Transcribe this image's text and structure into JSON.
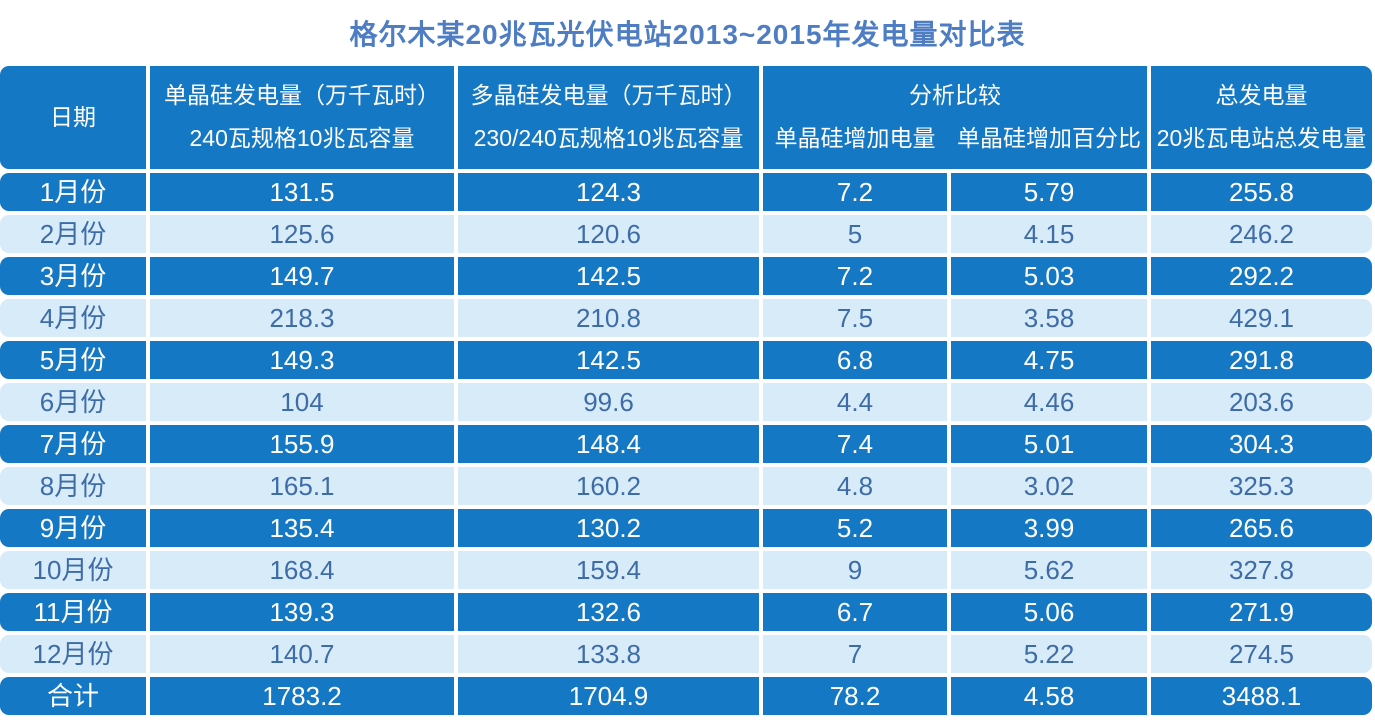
{
  "title": "格尔木某20兆瓦光伏电站2013~2015年发电量对比表",
  "colors": {
    "band_dark": "#1478c4",
    "band_light": "#d8ebf8",
    "text_on_dark": "#ffffff",
    "text_on_light": "#3d6ca9",
    "title_text": "#4e7dc4"
  },
  "header": {
    "date_label": "日期",
    "mono_line1": "单晶硅发电量（万千瓦时）",
    "mono_line2": "240瓦规格10兆瓦容量",
    "poly_line1": "多晶硅发电量（万千瓦时）",
    "poly_line2": "230/240瓦规格10兆瓦容量",
    "analysis_label": "分析比较",
    "analysis_sub1": "单晶硅增加电量",
    "analysis_sub2": "单晶硅增加百分比",
    "total_line1": "总发电量",
    "total_line2": "20兆瓦电站总发电量"
  },
  "rows": [
    {
      "month": "1月份",
      "mono": "131.5",
      "poly": "124.3",
      "increase": "7.2",
      "percent": "5.79",
      "total": "255.8"
    },
    {
      "month": "2月份",
      "mono": "125.6",
      "poly": "120.6",
      "increase": "5",
      "percent": "4.15",
      "total": "246.2"
    },
    {
      "month": "3月份",
      "mono": "149.7",
      "poly": "142.5",
      "increase": "7.2",
      "percent": "5.03",
      "total": "292.2"
    },
    {
      "month": "4月份",
      "mono": "218.3",
      "poly": "210.8",
      "increase": "7.5",
      "percent": "3.58",
      "total": "429.1"
    },
    {
      "month": "5月份",
      "mono": "149.3",
      "poly": "142.5",
      "increase": "6.8",
      "percent": "4.75",
      "total": "291.8"
    },
    {
      "month": "6月份",
      "mono": "104",
      "poly": "99.6",
      "increase": "4.4",
      "percent": "4.46",
      "total": "203.6"
    },
    {
      "month": "7月份",
      "mono": "155.9",
      "poly": "148.4",
      "increase": "7.4",
      "percent": "5.01",
      "total": "304.3"
    },
    {
      "month": "8月份",
      "mono": "165.1",
      "poly": "160.2",
      "increase": "4.8",
      "percent": "3.02",
      "total": "325.3"
    },
    {
      "month": "9月份",
      "mono": "135.4",
      "poly": "130.2",
      "increase": "5.2",
      "percent": "3.99",
      "total": "265.6"
    },
    {
      "month": "10月份",
      "mono": "168.4",
      "poly": "159.4",
      "increase": "9",
      "percent": "5.62",
      "total": "327.8"
    },
    {
      "month": "11月份",
      "mono": "139.3",
      "poly": "132.6",
      "increase": "6.7",
      "percent": "5.06",
      "total": "271.9"
    },
    {
      "month": "12月份",
      "mono": "140.7",
      "poly": "133.8",
      "increase": "7",
      "percent": "5.22",
      "total": "274.5"
    }
  ],
  "total_row": {
    "month": "合计",
    "mono": "1783.2",
    "poly": "1704.9",
    "increase": "78.2",
    "percent": "4.58",
    "total": "3488.1"
  },
  "chart_data": {
    "type": "table",
    "title": "格尔木某20兆瓦光伏电站2013~2015年发电量对比表",
    "columns": [
      "日期",
      "单晶硅发电量（万千瓦时） 240瓦规格10兆瓦容量",
      "多晶硅发电量（万千瓦时） 230/240瓦规格10兆瓦容量",
      "分析比较 单晶硅增加电量",
      "分析比较 单晶硅增加百分比",
      "总发电量 20兆瓦电站总发电量"
    ],
    "rows": [
      [
        "1月份",
        131.5,
        124.3,
        7.2,
        5.79,
        255.8
      ],
      [
        "2月份",
        125.6,
        120.6,
        5,
        4.15,
        246.2
      ],
      [
        "3月份",
        149.7,
        142.5,
        7.2,
        5.03,
        292.2
      ],
      [
        "4月份",
        218.3,
        210.8,
        7.5,
        3.58,
        429.1
      ],
      [
        "5月份",
        149.3,
        142.5,
        6.8,
        4.75,
        291.8
      ],
      [
        "6月份",
        104,
        99.6,
        4.4,
        4.46,
        203.6
      ],
      [
        "7月份",
        155.9,
        148.4,
        7.4,
        5.01,
        304.3
      ],
      [
        "8月份",
        165.1,
        160.2,
        4.8,
        3.02,
        325.3
      ],
      [
        "9月份",
        135.4,
        130.2,
        5.2,
        3.99,
        265.6
      ],
      [
        "10月份",
        168.4,
        159.4,
        9,
        5.62,
        327.8
      ],
      [
        "11月份",
        139.3,
        132.6,
        6.7,
        5.06,
        271.9
      ],
      [
        "12月份",
        140.7,
        133.8,
        7,
        5.22,
        274.5
      ],
      [
        "合计",
        1783.2,
        1704.9,
        78.2,
        4.58,
        3488.1
      ]
    ]
  }
}
